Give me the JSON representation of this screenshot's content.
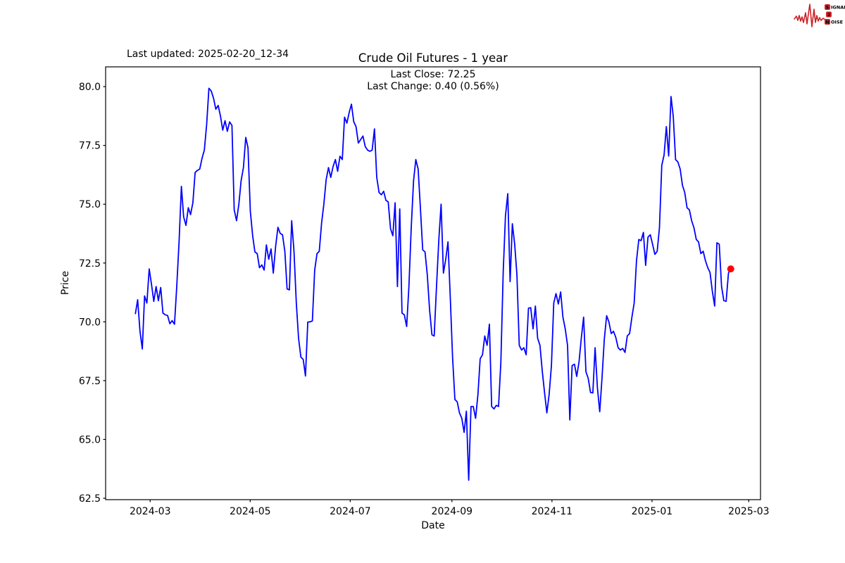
{
  "header": {
    "last_updated": "Last updated: 2025-02-20_12-34",
    "logo": {
      "word_top": "SIGNAL",
      "word_mid": "2",
      "word_bottom": "NOISE",
      "accent_color": "#cc2127",
      "text_color": "#6b1515"
    }
  },
  "chart_data": {
    "type": "line",
    "title": "Crude Oil Futures - 1 year",
    "annotation_line1": "Last Close: 72.25",
    "annotation_line2": "Last Change: 0.40 (0.56%)",
    "last_close": 72.25,
    "last_change": "0.40 (0.56%)",
    "xlabel": "Date",
    "ylabel": "Price",
    "line_color": "#0000ff",
    "marker_color": "#ff0000",
    "legend": "none",
    "grid": false,
    "x_tick_labels": [
      "2024-03",
      "2024-05",
      "2024-07",
      "2024-09",
      "2024-11",
      "2025-01",
      "2025-03"
    ],
    "x_tick_days": [
      0,
      61,
      122,
      184,
      245,
      306,
      365
    ],
    "x_data_day_range": [
      -9,
      354
    ],
    "xlim_days": [
      -27.15,
      372.15
    ],
    "y_tick_labels": [
      "80.0",
      "77.5",
      "75.0",
      "72.5",
      "70.0",
      "67.5",
      "65.0",
      "62.5"
    ],
    "y_ticks": [
      80.0,
      77.5,
      75.0,
      72.5,
      70.0,
      67.5,
      65.0,
      62.5
    ],
    "ylim": [
      62.44,
      80.84
    ],
    "prices": [
      70.35,
      70.94,
      69.6,
      68.85,
      71.1,
      70.8,
      72.25,
      71.6,
      70.87,
      71.5,
      70.9,
      71.46,
      70.37,
      70.3,
      70.27,
      69.92,
      70.05,
      69.9,
      71.5,
      73.4,
      75.76,
      74.46,
      74.1,
      74.85,
      74.56,
      75.06,
      76.35,
      76.44,
      76.5,
      76.95,
      77.3,
      78.4,
      79.93,
      79.81,
      79.5,
      79.04,
      79.2,
      78.75,
      78.15,
      78.55,
      78.1,
      78.5,
      78.35,
      74.76,
      74.3,
      75.0,
      76.0,
      76.56,
      77.84,
      77.4,
      74.7,
      73.66,
      72.97,
      72.9,
      72.3,
      72.42,
      72.2,
      73.27,
      72.66,
      73.1,
      72.07,
      73.2,
      74.02,
      73.76,
      73.7,
      73.0,
      71.4,
      71.36,
      74.3,
      73.0,
      70.8,
      69.3,
      68.5,
      68.4,
      67.7,
      69.99,
      70.0,
      70.04,
      72.2,
      72.9,
      73.0,
      74.2,
      75.0,
      76.05,
      76.56,
      76.14,
      76.6,
      76.9,
      76.4,
      77.04,
      76.9,
      78.7,
      78.45,
      78.9,
      79.25,
      78.5,
      78.3,
      77.6,
      77.75,
      77.9,
      77.45,
      77.3,
      77.25,
      77.3,
      78.2,
      76.15,
      75.5,
      75.4,
      75.55,
      75.16,
      75.1,
      73.96,
      73.66,
      75.06,
      71.5,
      74.8,
      70.37,
      70.3,
      69.8,
      71.5,
      74.0,
      76.0,
      76.9,
      76.5,
      74.85,
      73.06,
      72.97,
      72.0,
      70.5,
      69.45,
      69.4,
      71.5,
      73.5,
      75.0,
      72.07,
      72.66,
      73.4,
      71.0,
      68.5,
      66.7,
      66.6,
      66.13,
      65.9,
      65.3,
      66.2,
      63.27,
      66.4,
      66.4,
      65.9,
      66.9,
      68.43,
      68.6,
      69.4,
      69.0,
      69.9,
      66.4,
      66.3,
      66.45,
      66.4,
      68.3,
      72.1,
      74.5,
      75.45,
      71.71,
      74.17,
      73.3,
      72.0,
      69.0,
      68.8,
      68.9,
      68.6,
      70.58,
      70.6,
      69.7,
      70.67,
      69.3,
      69.0,
      67.9,
      67.0,
      66.13,
      66.9,
      68.14,
      70.8,
      71.2,
      70.76,
      71.27,
      70.2,
      69.7,
      69.0,
      65.83,
      68.14,
      68.2,
      67.68,
      68.3,
      69.3,
      70.2,
      67.88,
      67.6,
      67.0,
      66.98,
      68.9,
      67.2,
      66.18,
      67.6,
      69.26,
      70.26,
      70.0,
      69.5,
      69.6,
      69.34,
      68.9,
      68.8,
      68.87,
      68.7,
      69.4,
      69.5,
      70.2,
      70.8,
      72.6,
      73.5,
      73.45,
      73.8,
      72.4,
      73.6,
      73.7,
      73.3,
      72.87,
      73.0,
      74.0,
      76.65,
      77.1,
      78.3,
      77.05,
      79.58,
      78.74,
      76.9,
      76.8,
      76.5,
      75.8,
      75.5,
      74.85,
      74.76,
      74.3,
      74.0,
      73.5,
      73.4,
      72.9,
      73.0,
      72.6,
      72.3,
      72.1,
      71.3,
      70.67,
      73.36,
      73.3,
      71.5,
      70.9,
      70.87,
      72.07,
      72.25
    ]
  }
}
